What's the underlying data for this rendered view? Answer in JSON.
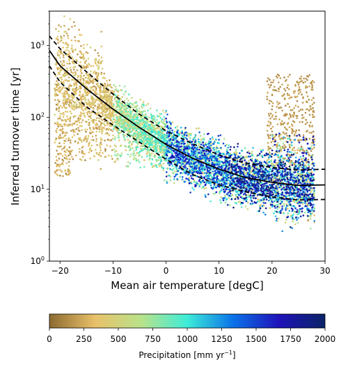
{
  "chart_data": {
    "type": "scatter",
    "xlabel": "Mean air temperature [degC]",
    "ylabel": "Inferred turnover time [yr]",
    "xlim": [
      -22,
      30
    ],
    "ylim": [
      1,
      3000
    ],
    "yscale": "log",
    "x_ticks": [
      -20,
      -10,
      0,
      10,
      20,
      30
    ],
    "x_tick_labels": [
      "−20",
      "−10",
      "0",
      "10",
      "20",
      "30"
    ],
    "y_ticks": [
      1,
      10,
      100,
      1000
    ],
    "y_tick_labels": [
      "10",
      "10",
      "10",
      "10"
    ],
    "y_tick_exponents": [
      "0",
      "1",
      "2",
      "3"
    ],
    "grid": false,
    "fit_curve": {
      "x": [
        -22,
        -20,
        -15,
        -10,
        -5,
        0,
        5,
        10,
        15,
        20,
        25,
        30
      ],
      "y": [
        850,
        520,
        250,
        130,
        72,
        42,
        27,
        19,
        14.5,
        12.5,
        11.3,
        11.5
      ]
    },
    "upper_bound": {
      "x": [
        -22,
        -20,
        -15,
        -10,
        -5,
        0,
        5,
        10,
        15,
        20,
        25,
        30
      ],
      "y": [
        1350,
        900,
        430,
        210,
        110,
        65,
        43,
        30,
        23,
        20,
        18.5,
        19
      ]
    },
    "lower_bound": {
      "x": [
        -22,
        -20,
        -15,
        -10,
        -5,
        0,
        5,
        10,
        15,
        20,
        25,
        30
      ],
      "y": [
        520,
        310,
        140,
        78,
        45,
        26,
        16,
        11.5,
        9.2,
        7.8,
        7.1,
        7.2
      ]
    },
    "point_clusters": [
      {
        "temp_range": [
          -21,
          -18
        ],
        "turnover_range": [
          15,
          300
        ],
        "precip_range": [
          100,
          450
        ]
      },
      {
        "temp_range": [
          -18,
          -10
        ],
        "turnover_range": [
          25,
          250
        ],
        "precip_range": [
          100,
          500
        ]
      },
      {
        "temp_range": [
          -10,
          0
        ],
        "turnover_range": [
          20,
          100
        ],
        "precip_range": [
          300,
          900
        ]
      },
      {
        "temp_range": [
          0,
          10
        ],
        "turnover_range": [
          12,
          60
        ],
        "precip_range": [
          500,
          1700
        ]
      },
      {
        "temp_range": [
          10,
          20
        ],
        "turnover_range": [
          6,
          35
        ],
        "precip_range": [
          300,
          1900
        ]
      },
      {
        "temp_range": [
          20,
          28
        ],
        "turnover_range": [
          3,
          60
        ],
        "precip_range": [
          100,
          2000
        ]
      },
      {
        "temp_range": [
          19,
          28
        ],
        "turnover_range": [
          20,
          400
        ],
        "precip_range": [
          100,
          250
        ]
      }
    ],
    "colorbar": {
      "label": "Precipitation [mm yr",
      "label_superscript": "−1",
      "label_end": "]",
      "ticks": [
        0,
        250,
        500,
        750,
        1000,
        1250,
        1500,
        1750,
        2000
      ],
      "tick_labels": [
        "0",
        "250",
        "500",
        "750",
        "1000",
        "1250",
        "1500",
        "1750",
        "2000"
      ],
      "colormap_stops": [
        "#8c6a30",
        "#e9c16a",
        "#b9e28a",
        "#3eecd8",
        "#0a72e8",
        "#1f12b9",
        "#0a2466"
      ]
    }
  }
}
